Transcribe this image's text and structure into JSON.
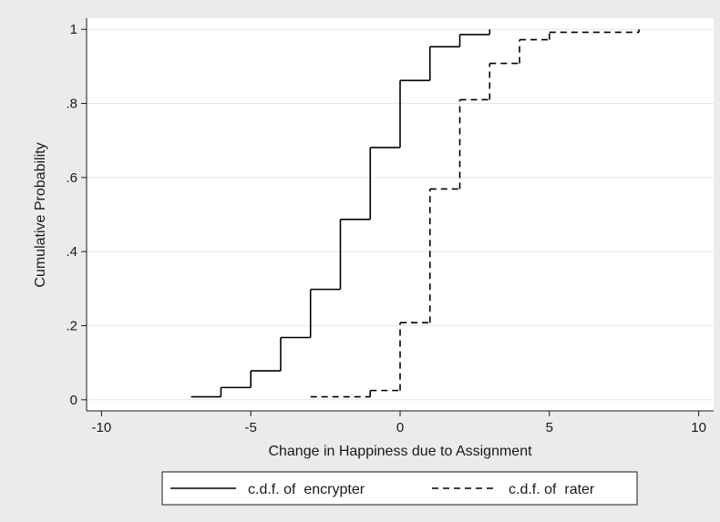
{
  "chart_data": {
    "type": "line",
    "title": "",
    "xlabel": "Change in Happiness due to Assignment",
    "ylabel": "Cumulative Probability",
    "xlim": [
      -10.5,
      10.5
    ],
    "ylim": [
      -0.03,
      1.03
    ],
    "xticks": [
      -10,
      -5,
      0,
      5,
      10
    ],
    "xtick_labels": [
      "-10",
      "-5",
      "0",
      "5",
      "10"
    ],
    "yticks": [
      0,
      0.2,
      0.4,
      0.6,
      0.8,
      1
    ],
    "ytick_labels": [
      "0",
      ".2",
      ".4",
      ".6",
      ".8",
      "1"
    ],
    "grid": "horizontal",
    "legend_position": "bottom",
    "series": [
      {
        "name": "c.d.f. of  encrypter",
        "line_style": "solid",
        "step": true,
        "x": [
          -7,
          -6,
          -5,
          -4,
          -3,
          -2,
          -1,
          0,
          1,
          2,
          3
        ],
        "y": [
          0.008,
          0.033,
          0.078,
          0.168,
          0.298,
          0.487,
          0.681,
          0.862,
          0.953,
          0.986,
          1.0
        ]
      },
      {
        "name": "c.d.f. of  rater",
        "line_style": "dashed",
        "step": true,
        "x": [
          -3,
          -1,
          0,
          1,
          2,
          3,
          4,
          5,
          8
        ],
        "y": [
          0.008,
          0.025,
          0.208,
          0.569,
          0.81,
          0.908,
          0.972,
          0.992,
          1.0
        ]
      }
    ]
  },
  "colors": {
    "background": "#ebebeb",
    "plot_background": "#ffffff",
    "gridline": "#e6e6e6",
    "axis": "#1a1a1a",
    "series": "#000000"
  }
}
